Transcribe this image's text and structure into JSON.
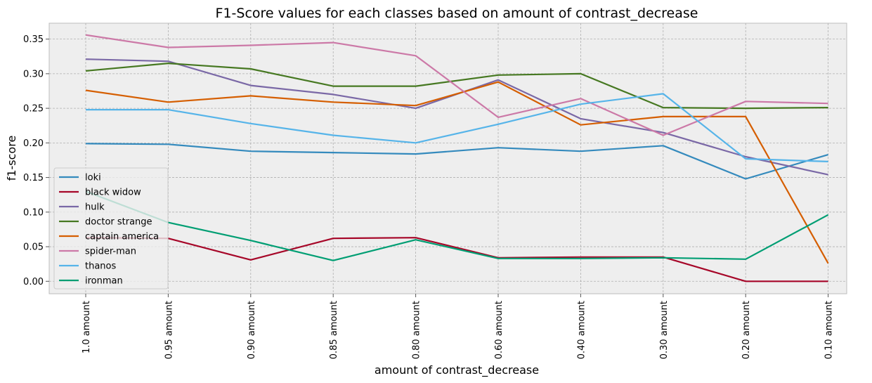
{
  "chart_data": {
    "type": "line",
    "title": "F1-Score values for each classes based on amount of contrast_decrease",
    "xlabel": "amount of contrast_decrease",
    "ylabel": "f1-score",
    "categories": [
      "1.0 amount",
      "0.95 amount",
      "0.90 amount",
      "0.85 amount",
      "0.80 amount",
      "0.60 amount",
      "0.40 amount",
      "0.30 amount",
      "0.20 amount",
      "0.10 amount"
    ],
    "ylim": [
      -0.018,
      0.373
    ],
    "yticks": [
      0.0,
      0.05,
      0.1,
      0.15,
      0.2,
      0.25,
      0.3,
      0.35
    ],
    "ytick_labels": [
      "0.00",
      "0.05",
      "0.10",
      "0.15",
      "0.20",
      "0.25",
      "0.30",
      "0.35"
    ],
    "grid": true,
    "legend_position": "lower-left",
    "series": [
      {
        "name": "loki",
        "color": "#348ABD",
        "values": [
          0.199,
          0.198,
          0.188,
          0.186,
          0.184,
          0.193,
          0.188,
          0.196,
          0.148,
          0.183
        ]
      },
      {
        "name": "black widow",
        "color": "#A60628",
        "values": [
          0.063,
          0.062,
          0.031,
          0.062,
          0.063,
          0.034,
          0.035,
          0.035,
          0.0,
          0.0
        ]
      },
      {
        "name": "hulk",
        "color": "#7A68A6",
        "values": [
          0.321,
          0.318,
          0.283,
          0.27,
          0.25,
          0.291,
          0.235,
          0.215,
          0.18,
          0.154
        ]
      },
      {
        "name": "doctor strange",
        "color": "#467821",
        "values": [
          0.304,
          0.315,
          0.307,
          0.282,
          0.282,
          0.298,
          0.3,
          0.251,
          0.25,
          0.251
        ]
      },
      {
        "name": "captain america",
        "color": "#D55E00",
        "values": [
          0.276,
          0.259,
          0.268,
          0.259,
          0.254,
          0.288,
          0.226,
          0.238,
          0.238,
          0.026
        ]
      },
      {
        "name": "spider-man",
        "color": "#CC79A7",
        "values": [
          0.356,
          0.338,
          0.341,
          0.345,
          0.326,
          0.237,
          0.264,
          0.211,
          0.26,
          0.257
        ]
      },
      {
        "name": "thanos",
        "color": "#56B4E9",
        "values": [
          0.248,
          0.248,
          0.228,
          0.211,
          0.2,
          0.227,
          0.256,
          0.271,
          0.177,
          0.173
        ]
      },
      {
        "name": "ironman",
        "color": "#009E73",
        "values": [
          0.13,
          0.085,
          0.059,
          0.03,
          0.06,
          0.033,
          0.033,
          0.034,
          0.032,
          0.096
        ]
      }
    ]
  }
}
